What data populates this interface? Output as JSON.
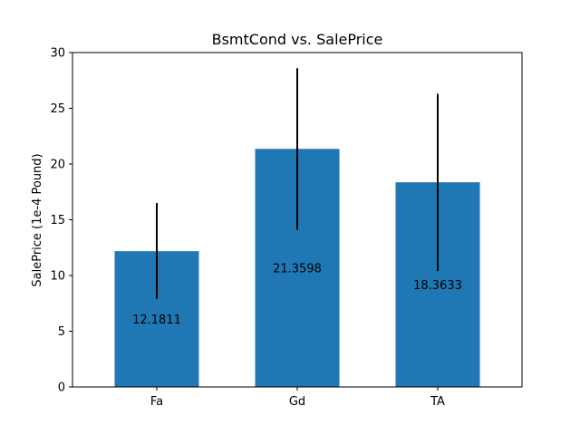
{
  "chart_data": {
    "type": "bar",
    "title": "BsmtCond vs. SalePrice",
    "xlabel": "",
    "ylabel": "SalePrice (1e-4 Pound)",
    "categories": [
      "Fa",
      "Gd",
      "TA"
    ],
    "values": [
      12.1811,
      21.3598,
      18.3633
    ],
    "value_labels": [
      "12.1811",
      "21.3598",
      "18.3633"
    ],
    "error_low": [
      7.9,
      14.1,
      10.4
    ],
    "error_high": [
      16.5,
      28.6,
      26.3
    ],
    "ylim": [
      0,
      30
    ],
    "yticks": [
      0,
      5,
      10,
      15,
      20,
      25,
      30
    ],
    "bar_color": "#1f77b4",
    "error_color": "#000000",
    "grid": false,
    "legend": "none"
  }
}
